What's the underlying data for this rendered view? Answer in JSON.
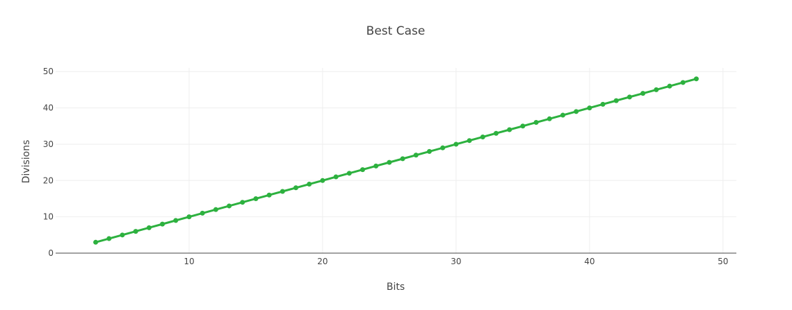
{
  "chart_data": {
    "type": "line",
    "title": "Best Case",
    "xlabel": "Bits",
    "ylabel": "Divisions",
    "xlim": [
      0,
      51
    ],
    "ylim": [
      0,
      51
    ],
    "x_ticks": [
      10,
      20,
      30,
      40,
      50
    ],
    "y_ticks": [
      0,
      10,
      20,
      30,
      40,
      50
    ],
    "grid": true,
    "legend": "none",
    "colors": {
      "series": "#2db13f",
      "grid": "#eeeeee",
      "axis": "#444444",
      "text": "#444444"
    },
    "series": [
      {
        "x": [
          3,
          4,
          5,
          6,
          7,
          8,
          9,
          10,
          11,
          12,
          13,
          14,
          15,
          16,
          17,
          18,
          19,
          20,
          21,
          22,
          23,
          24,
          25,
          26,
          27,
          28,
          29,
          30,
          31,
          32,
          33,
          34,
          35,
          36,
          37,
          38,
          39,
          40,
          41,
          42,
          43,
          44,
          45,
          46,
          47,
          48
        ],
        "values": [
          3,
          4,
          5,
          6,
          7,
          8,
          9,
          10,
          11,
          12,
          13,
          14,
          15,
          16,
          17,
          18,
          19,
          20,
          21,
          22,
          23,
          24,
          25,
          26,
          27,
          28,
          29,
          30,
          31,
          32,
          33,
          34,
          35,
          36,
          37,
          38,
          39,
          40,
          41,
          42,
          43,
          44,
          45,
          46,
          47,
          48
        ]
      }
    ]
  }
}
